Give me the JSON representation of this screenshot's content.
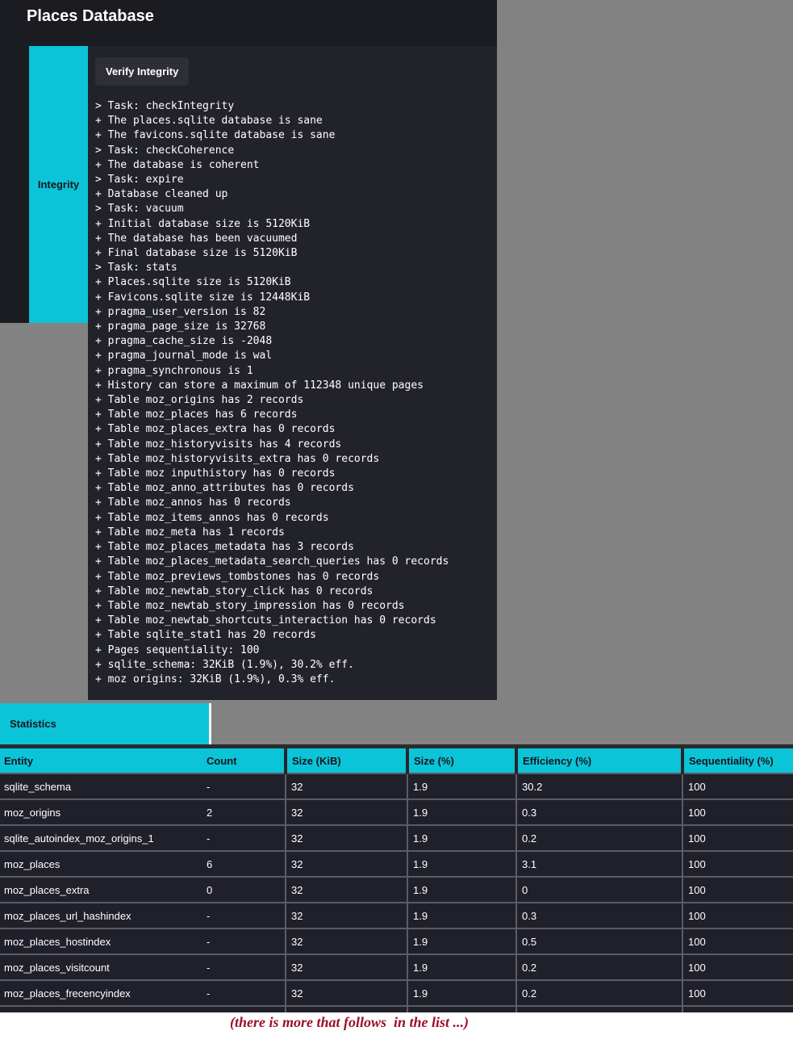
{
  "header": {
    "title": "Places Database"
  },
  "tabs": {
    "integrity_label": "Integrity",
    "statistics_label": "Statistics"
  },
  "toolbar": {
    "verify_button_label": "Verify Integrity"
  },
  "log": {
    "text": "> Task: checkIntegrity\n+ The places.sqlite database is sane\n+ The favicons.sqlite database is sane\n> Task: checkCoherence\n+ The database is coherent\n> Task: expire\n+ Database cleaned up\n> Task: vacuum\n+ Initial database size is 5120KiB\n+ The database has been vacuumed\n+ Final database size is 5120KiB\n> Task: stats\n+ Places.sqlite size is 5120KiB\n+ Favicons.sqlite size is 12448KiB\n+ pragma_user_version is 82\n+ pragma_page_size is 32768\n+ pragma_cache_size is -2048\n+ pragma_journal_mode is wal\n+ pragma_synchronous is 1\n+ History can store a maximum of 112348 unique pages\n+ Table moz_origins has 2 records\n+ Table moz_places has 6 records\n+ Table moz_places_extra has 0 records\n+ Table moz_historyvisits has 4 records\n+ Table moz_historyvisits_extra has 0 records\n+ Table moz inputhistory has 0 records\n+ Table moz_anno_attributes has 0 records\n+ Table moz_annos has 0 records\n+ Table moz_items_annos has 0 records\n+ Table moz_meta has 1 records\n+ Table moz_places_metadata has 3 records\n+ Table moz_places_metadata_search_queries has 0 records\n+ Table moz_previews_tombstones has 0 records\n+ Table moz_newtab_story_click has 0 records\n+ Table moz_newtab_story_impression has 0 records\n+ Table moz_newtab_shortcuts_interaction has 0 records\n+ Table sqlite_stat1 has 20 records\n+ Pages sequentiality: 100\n+ sqlite_schema: 32KiB (1.9%), 30.2% eff.\n+ moz origins: 32KiB (1.9%), 0.3% eff."
  },
  "table": {
    "columns": [
      "Entity",
      "Count",
      "Size (KiB)",
      "Size (%)",
      "Efficiency (%)",
      "Sequentiality (%)"
    ],
    "rows": [
      [
        "sqlite_schema",
        "-",
        "32",
        "1.9",
        "30.2",
        "100"
      ],
      [
        "moz_origins",
        "2",
        "32",
        "1.9",
        "0.3",
        "100"
      ],
      [
        "sqlite_autoindex_moz_origins_1",
        "-",
        "32",
        "1.9",
        "0.2",
        "100"
      ],
      [
        "moz_places",
        "6",
        "32",
        "1.9",
        "3.1",
        "100"
      ],
      [
        "moz_places_extra",
        "0",
        "32",
        "1.9",
        "0",
        "100"
      ],
      [
        "moz_places_url_hashindex",
        "-",
        "32",
        "1.9",
        "0.3",
        "100"
      ],
      [
        "moz_places_hostindex",
        "-",
        "32",
        "1.9",
        "0.5",
        "100"
      ],
      [
        "moz_places_visitcount",
        "-",
        "32",
        "1.9",
        "0.2",
        "100"
      ],
      [
        "moz_places_frecencyindex",
        "-",
        "32",
        "1.9",
        "0.2",
        "100"
      ]
    ]
  },
  "note": {
    "text": "(there is more that follows  in the list ...)"
  },
  "colors": {
    "accent_cyan": "#0bc4d8",
    "dark_panel": "#22222b",
    "dark_header": "#1b1b22",
    "gray_backdrop": "#828282",
    "note_red": "#9c1127"
  }
}
